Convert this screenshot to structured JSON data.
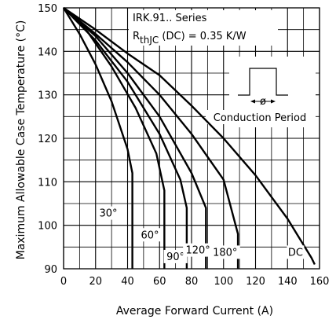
{
  "chart_data": {
    "type": "line",
    "title": "IRK.91.. Series",
    "subtitle_prefix": "R",
    "subtitle_subscript": "thJC",
    "subtitle_suffix": " (DC) = 0.35 K/W",
    "xlabel": "Average Forward Current (A)",
    "ylabel": "Maximum Allowable Case Temperature (°C)",
    "xlim": [
      0,
      160
    ],
    "ylim": [
      90,
      150
    ],
    "xticks": [
      0,
      20,
      40,
      60,
      80,
      100,
      120,
      140,
      160
    ],
    "yticks": [
      90,
      100,
      110,
      120,
      130,
      140,
      150
    ],
    "grid": true,
    "inset_label": "Conduction Period",
    "inset_symbol": "ø",
    "series": [
      {
        "name": "30°",
        "x": [
          0,
          10,
          20,
          30,
          40,
          43,
          43
        ],
        "y": [
          150,
          144,
          137,
          128.5,
          117.5,
          112,
          90
        ]
      },
      {
        "name": "60°",
        "x": [
          0,
          15,
          30,
          45,
          58,
          63,
          63
        ],
        "y": [
          150,
          144.5,
          136.5,
          127,
          116.5,
          108,
          90
        ]
      },
      {
        "name": "90°",
        "x": [
          0,
          20,
          40,
          60,
          73,
          77,
          77
        ],
        "y": [
          150,
          142.5,
          133,
          121,
          110.5,
          104,
          90
        ]
      },
      {
        "name": "120°",
        "x": [
          0,
          20,
          40,
          60,
          80,
          89,
          89
        ],
        "y": [
          150,
          143.5,
          135,
          125,
          112,
          104,
          90
        ]
      },
      {
        "name": "180°",
        "x": [
          0,
          20,
          40,
          60,
          80,
          100,
          109,
          109
        ],
        "y": [
          150,
          144,
          137.5,
          130,
          121,
          110.5,
          98,
          90
        ]
      },
      {
        "name": "DC",
        "x": [
          0,
          20,
          40,
          60,
          80,
          100,
          120,
          140,
          155,
          157
        ],
        "y": [
          150,
          145,
          139.5,
          134.5,
          127.5,
          120,
          111.5,
          101.5,
          92.5,
          91
        ]
      }
    ]
  }
}
